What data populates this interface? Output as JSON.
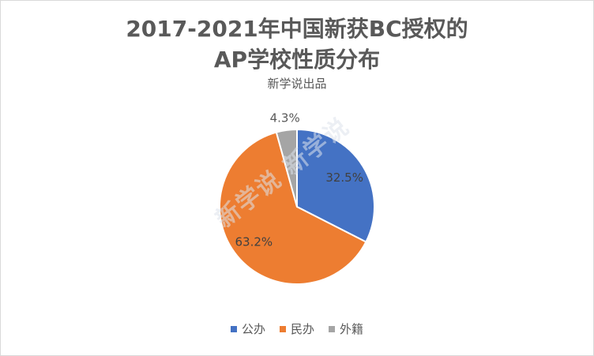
{
  "chart_data": {
    "type": "pie",
    "title_line1": "2017-2021年中国新获BC授权的",
    "title_line2": "AP学校性质分布",
    "subtitle": "新学说出品",
    "legend_position": "bottom",
    "slices": [
      {
        "name": "公办",
        "value": 32.5,
        "label": "32.5%",
        "color": "#4472c4"
      },
      {
        "name": "民办",
        "value": 63.2,
        "label": "63.2%",
        "color": "#ed7d31"
      },
      {
        "name": "外籍",
        "value": 4.3,
        "label": "4.3%",
        "color": "#a5a5a5"
      }
    ]
  },
  "watermark": "新学说 新学说"
}
